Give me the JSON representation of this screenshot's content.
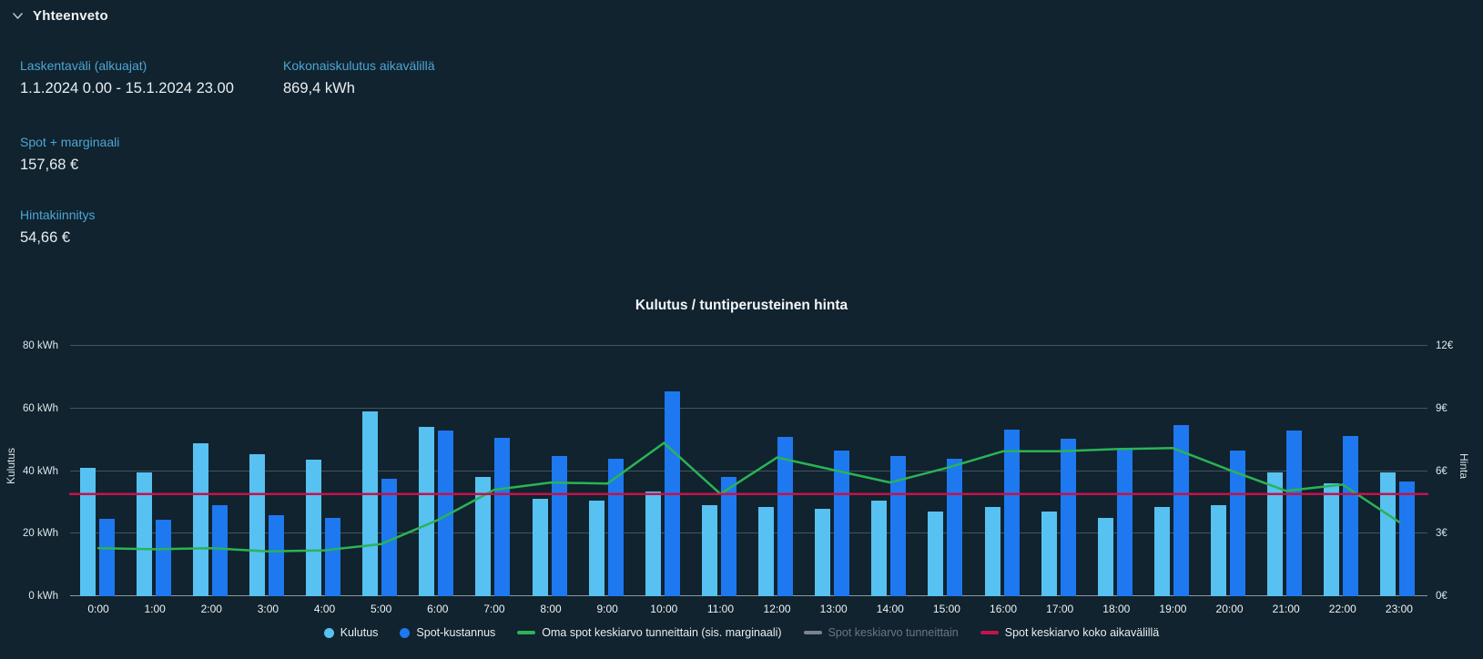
{
  "theme": {
    "background": "#10232e",
    "label_blue": "#4fa5d5",
    "text": "#e9eef1",
    "gridline": "#96a6b2"
  },
  "header": {
    "title": "Yhteenveto",
    "collapse_icon": "chevron-down"
  },
  "summary": {
    "fields": [
      {
        "label": "Laskentaväli (alkuajat)",
        "value": "1.1.2024 0.00 - 15.1.2024 23.00"
      },
      {
        "label": "Kokonaiskulutus aikavälillä",
        "value": "869,4 kWh"
      },
      {
        "label": "Spot + marginaali",
        "value": "157,68 €"
      },
      {
        "label": "Hintakiinnitys",
        "value": "54,66 €"
      }
    ]
  },
  "chart_data": {
    "type": "bar",
    "title": "Kulutus / tuntiperusteinen hinta",
    "categories": [
      "0:00",
      "1:00",
      "2:00",
      "3:00",
      "4:00",
      "5:00",
      "6:00",
      "7:00",
      "8:00",
      "9:00",
      "10:00",
      "11:00",
      "12:00",
      "13:00",
      "14:00",
      "15:00",
      "16:00",
      "17:00",
      "18:00",
      "19:00",
      "20:00",
      "21:00",
      "22:00",
      "23:00"
    ],
    "left_axis": {
      "name": "Kulutus",
      "unit": "kWh",
      "max": 80,
      "ticks": [
        0,
        20,
        40,
        60,
        80
      ],
      "tick_labels": [
        "0 kWh",
        "20 kWh",
        "40 kWh",
        "60 kWh",
        "80 kWh"
      ]
    },
    "right_axis": {
      "name": "Hinta",
      "unit": "€",
      "max": 12,
      "ticks": [
        0,
        3,
        6,
        9,
        12
      ],
      "tick_labels": [
        "0€",
        "3€",
        "6€",
        "9€",
        "12€"
      ]
    },
    "grid": true,
    "legend_position": "bottom",
    "series": [
      {
        "name": "Kulutus",
        "type": "bar",
        "axis": "left",
        "color": "#57c1f2",
        "values": [
          41,
          39.5,
          49,
          45.5,
          43.5,
          59,
          54,
          38,
          31,
          30.5,
          33.5,
          29,
          28.5,
          28,
          30.5,
          27,
          28.5,
          27,
          25,
          28.5,
          29,
          39.5,
          36,
          39.5
        ]
      },
      {
        "name": "Spot-kustannus",
        "type": "bar",
        "axis": "right",
        "color": "#1e78f0",
        "values": [
          3.7,
          3.65,
          4.35,
          3.9,
          3.75,
          5.65,
          7.95,
          7.6,
          6.7,
          6.6,
          9.8,
          5.7,
          7.65,
          7.0,
          6.7,
          6.6,
          8.0,
          7.55,
          7.1,
          8.2,
          7.0,
          7.95,
          7.7,
          5.5
        ]
      },
      {
        "name": "Oma spot keskiarvo tunneittain (sis. marginaali)",
        "type": "line",
        "axis": "right",
        "color": "#2bb356",
        "values": [
          2.3,
          2.25,
          2.3,
          2.15,
          2.2,
          2.5,
          3.65,
          5.1,
          5.45,
          5.4,
          7.35,
          4.9,
          6.65,
          6.05,
          5.45,
          6.15,
          6.95,
          6.95,
          7.05,
          7.1,
          6.05,
          5.05,
          5.35,
          3.55
        ]
      },
      {
        "name": "Spot keskiarvo tunneittain",
        "type": "line",
        "axis": "right",
        "color": "#8a949c",
        "hidden": true,
        "values": null
      },
      {
        "name": "Spot keskiarvo koko aikavälillä",
        "type": "line",
        "axis": "right",
        "color": "#c2134e",
        "constant": 4.9
      }
    ]
  }
}
